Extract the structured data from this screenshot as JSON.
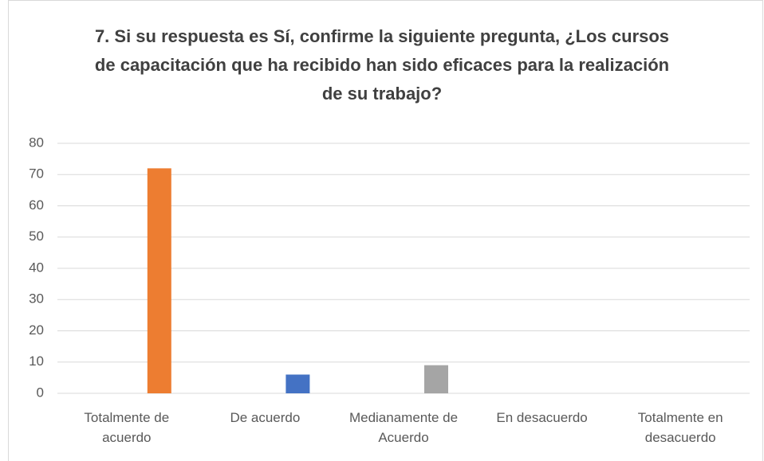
{
  "chart_data": {
    "type": "bar",
    "title": "7. Si su respuesta es Sí, confirme la siguiente pregunta, ¿Los cursos de capacitación que ha recibido han sido eficaces para la realización de su trabajo?",
    "categories": [
      "Totalmente de acuerdo",
      "De acuerdo",
      "Medianamente de Acuerdo",
      "En desacuerdo",
      "Totalmente en desacuerdo"
    ],
    "values": [
      72,
      6,
      9,
      0,
      0
    ],
    "colors": [
      "#ed7d31",
      "#4472c4",
      "#a5a5a5",
      "#ffc000",
      "#5b9bd5"
    ],
    "ylim": [
      0,
      80
    ],
    "yticks": [
      0,
      10,
      20,
      30,
      40,
      50,
      60,
      70,
      80
    ],
    "grid": true
  }
}
